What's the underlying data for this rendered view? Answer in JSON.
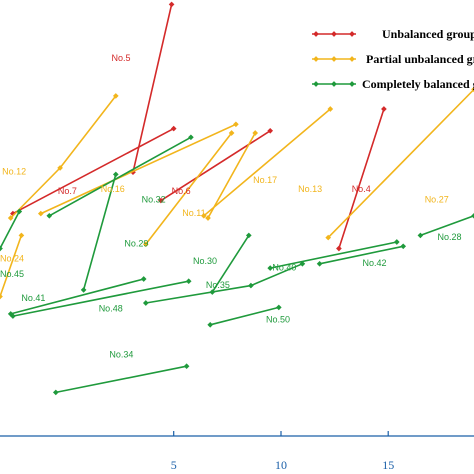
{
  "chart_data": {
    "type": "line",
    "xlim": [
      -3.1,
      19
    ],
    "ylim": [
      0,
      10
    ],
    "x_ticks": [
      5,
      10,
      15
    ],
    "x_tick_labels": [
      "5",
      "10",
      "15"
    ],
    "grid": false,
    "legend_placement": "top-right",
    "legend": [
      {
        "label": "Unbalanced group",
        "color": "#d42a2a"
      },
      {
        "label": "Partial unbalanced group",
        "color": "#f2b51c"
      },
      {
        "label": "Completely balanced group",
        "color": "#1f9a3c"
      }
    ],
    "series": [
      {
        "name": "Unbalanced group",
        "color": "#d42a2a",
        "segments": [
          {
            "label": "No.5",
            "points": [
              [
                3.1,
                6.05
              ],
              [
                4.9,
                9.9
              ]
            ]
          },
          {
            "label": "No.7",
            "points": [
              [
                -2.5,
                5.1
              ],
              [
                5.0,
                7.05
              ]
            ]
          },
          {
            "label": "No.6",
            "points": [
              [
                4.4,
                5.4
              ],
              [
                9.5,
                7.0
              ]
            ]
          },
          {
            "label": "No.4",
            "points": [
              [
                12.7,
                4.3
              ],
              [
                14.8,
                7.5
              ]
            ]
          }
        ]
      },
      {
        "name": "Partial unbalanced group",
        "color": "#f2b51c",
        "segments": [
          {
            "label": "No.12",
            "points": [
              [
                -2.6,
                5.0
              ],
              [
                -0.3,
                6.15
              ],
              [
                2.3,
                7.8
              ]
            ]
          },
          {
            "label": "No.16",
            "points": [
              [
                -1.2,
                5.1
              ],
              [
                7.9,
                7.15
              ]
            ]
          },
          {
            "label": "No.11",
            "points": [
              [
                3.7,
                4.4
              ],
              [
                7.7,
                6.95
              ]
            ]
          },
          {
            "label": "No.17",
            "points": [
              [
                6.6,
                5.0
              ],
              [
                8.8,
                6.95
              ]
            ]
          },
          {
            "label": "No.13",
            "points": [
              [
                6.4,
                5.05
              ],
              [
                12.3,
                7.5
              ]
            ]
          },
          {
            "label": "No.27",
            "points": [
              [
                12.2,
                4.55
              ],
              [
                19.0,
                7.95
              ]
            ]
          },
          {
            "label": "No.24",
            "points": [
              [
                -3.1,
                3.2
              ],
              [
                -2.1,
                4.6
              ]
            ]
          }
        ]
      },
      {
        "name": "Completely balanced group",
        "color": "#1f9a3c",
        "segments": [
          {
            "label": "No.32",
            "points": [
              [
                -0.8,
                5.05
              ],
              [
                5.8,
                6.85
              ]
            ]
          },
          {
            "label": "No.29",
            "points": [
              [
                0.8,
                3.35
              ],
              [
                2.3,
                6.0
              ]
            ]
          },
          {
            "label": "No.30",
            "points": [
              [
                6.8,
                3.3
              ],
              [
                8.5,
                4.6
              ]
            ]
          },
          {
            "label": "No.35",
            "points": [
              [
                3.7,
                3.05
              ],
              [
                8.6,
                3.45
              ],
              [
                11.0,
                3.95
              ]
            ]
          },
          {
            "label": "No.40",
            "points": [
              [
                9.5,
                3.85
              ],
              [
                15.4,
                4.45
              ]
            ]
          },
          {
            "label": "No.42",
            "points": [
              [
                11.8,
                3.95
              ],
              [
                15.7,
                4.35
              ]
            ]
          },
          {
            "label": "No.28",
            "points": [
              [
                16.5,
                4.6
              ],
              [
                19.0,
                5.05
              ]
            ]
          },
          {
            "label": "No.45",
            "points": [
              [
                -3.1,
                4.3
              ],
              [
                -2.2,
                5.15
              ]
            ]
          },
          {
            "label": "No.41",
            "points": [
              [
                -2.6,
                2.8
              ],
              [
                3.6,
                3.6
              ]
            ]
          },
          {
            "label": "No.48",
            "points": [
              [
                -2.5,
                2.75
              ],
              [
                5.7,
                3.55
              ]
            ]
          },
          {
            "label": "No.50",
            "points": [
              [
                6.7,
                2.55
              ],
              [
                9.9,
                2.95
              ]
            ]
          },
          {
            "label": "No.34",
            "points": [
              [
                -0.5,
                1.0
              ],
              [
                5.6,
                1.6
              ]
            ]
          }
        ]
      }
    ],
    "segment_labels": [
      {
        "text": "No.5",
        "at": [
          2.1,
          8.6
        ],
        "series": 0
      },
      {
        "text": "No.7",
        "at": [
          -0.4,
          5.55
        ],
        "series": 0
      },
      {
        "text": "No.6",
        "at": [
          4.9,
          5.55
        ],
        "series": 0
      },
      {
        "text": "No.4",
        "at": [
          13.3,
          5.6
        ],
        "series": 0
      },
      {
        "text": "No.12",
        "at": [
          -3.0,
          6.0
        ],
        "series": 1
      },
      {
        "text": "No.16",
        "at": [
          1.6,
          5.6
        ],
        "series": 1
      },
      {
        "text": "No.11",
        "at": [
          5.4,
          5.05
        ],
        "series": 1
      },
      {
        "text": "No.17",
        "at": [
          8.7,
          5.8
        ],
        "series": 1
      },
      {
        "text": "No.13",
        "at": [
          10.8,
          5.6
        ],
        "series": 1
      },
      {
        "text": "No.27",
        "at": [
          16.7,
          5.35
        ],
        "series": 1
      },
      {
        "text": "No.24",
        "at": [
          -3.1,
          4.0
        ],
        "series": 1
      },
      {
        "text": "No.32",
        "at": [
          3.5,
          5.35
        ],
        "series": 2
      },
      {
        "text": "No.29",
        "at": [
          2.7,
          4.35
        ],
        "series": 2
      },
      {
        "text": "No.30",
        "at": [
          5.9,
          3.95
        ],
        "series": 2
      },
      {
        "text": "No.35",
        "at": [
          6.5,
          3.4
        ],
        "series": 2
      },
      {
        "text": "No.40",
        "at": [
          9.6,
          3.8
        ],
        "series": 2
      },
      {
        "text": "No.42",
        "at": [
          13.8,
          3.9
        ],
        "series": 2
      },
      {
        "text": "No.28",
        "at": [
          17.3,
          4.5
        ],
        "series": 2
      },
      {
        "text": "No.45",
        "at": [
          -3.1,
          3.65
        ],
        "series": 2
      },
      {
        "text": "No.41",
        "at": [
          -2.1,
          3.1
        ],
        "series": 2
      },
      {
        "text": "No.48",
        "at": [
          1.5,
          2.85
        ],
        "series": 2
      },
      {
        "text": "No.50",
        "at": [
          9.3,
          2.6
        ],
        "series": 2
      },
      {
        "text": "No.34",
        "at": [
          2.0,
          1.8
        ],
        "series": 2
      }
    ]
  }
}
